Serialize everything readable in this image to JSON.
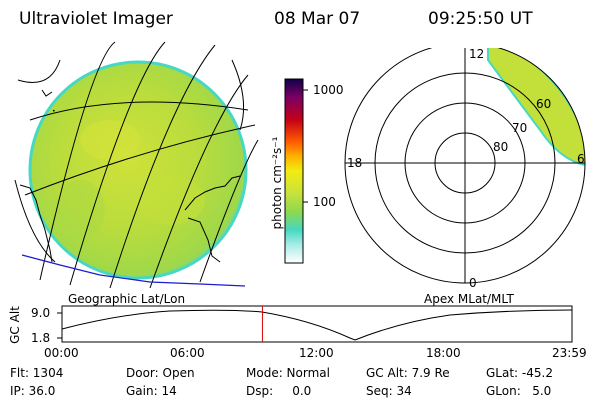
{
  "header": {
    "instrument": "Ultraviolet Imager",
    "date": "08 Mar 07",
    "time": "09:25:50 UT"
  },
  "colorbar": {
    "unit_label": "photon cm⁻²s⁻¹",
    "ticks": [
      "1000",
      "100"
    ]
  },
  "geo_panel": {
    "label": "Geographic Lat/Lon"
  },
  "polar_panel": {
    "label": "Apex  MLat/MLT",
    "mlt_labels": {
      "top": "12",
      "left": "18",
      "bottom": "0",
      "right": "6"
    },
    "lat_labels": [
      "80",
      "70",
      "60"
    ]
  },
  "altitude_strip": {
    "ylabel": "GC Alt",
    "y_ticks": [
      "9.0",
      "1.8"
    ],
    "time_ticks": [
      "00:00",
      "06:00",
      "12:00",
      "18:00",
      "23:59"
    ],
    "current_time_fraction": 0.393
  },
  "status": {
    "flt": "Flt: 1304",
    "ip": "IP: 36.0",
    "door": "Door: Open",
    "gain": "Gain: 14",
    "mode": "Mode: Normal",
    "dsp": "Dsp:     0.0",
    "gc_alt": "GC Alt: 7.9 Re",
    "seq": "Seq: 34",
    "glat": "GLat: -45.2",
    "glon": "GLon:   5.0"
  },
  "colors": {
    "aurora_fill": "#b6dc3a",
    "aurora_fill_2": "#c8e23c",
    "rim": "#3fd6c0",
    "coast": "#1b1bd0",
    "marker": "#e00000"
  }
}
